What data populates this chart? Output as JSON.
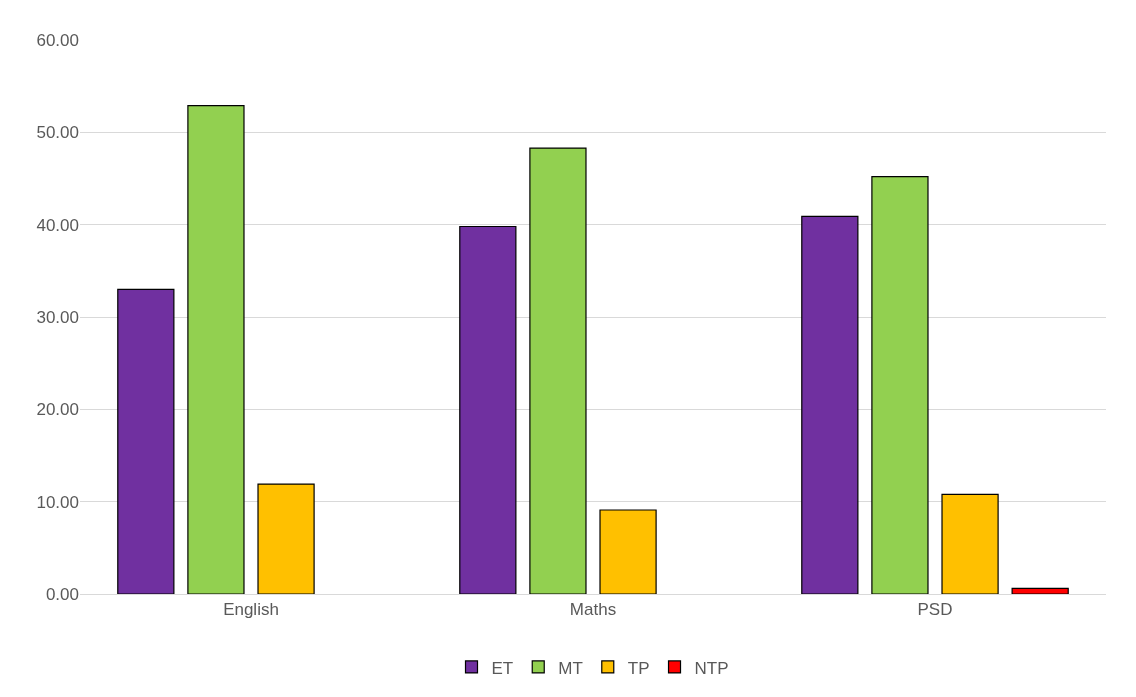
{
  "chart_data": {
    "type": "bar",
    "categories": [
      "English",
      "Maths",
      "PSD"
    ],
    "series": [
      {
        "name": "ET",
        "color": "#7030a0",
        "values": [
          33.0,
          39.8,
          40.9
        ]
      },
      {
        "name": "MT",
        "color": "#92d050",
        "values": [
          52.9,
          48.3,
          45.2
        ]
      },
      {
        "name": "TP",
        "color": "#ffc000",
        "values": [
          11.9,
          9.1,
          10.8
        ]
      },
      {
        "name": "NTP",
        "color": "#ff0000",
        "values": [
          null,
          null,
          0.6
        ]
      }
    ],
    "ylim": [
      0,
      60
    ],
    "yticks": [
      {
        "value": 0,
        "label": "0.00"
      },
      {
        "value": 10,
        "label": "10.00"
      },
      {
        "value": 20,
        "label": "20.00"
      },
      {
        "value": 30,
        "label": "30.00"
      },
      {
        "value": 40,
        "label": "40.00"
      },
      {
        "value": 50,
        "label": "50.00"
      },
      {
        "value": 60,
        "label": "60.00"
      }
    ],
    "grid": "y",
    "legend": "bottom"
  }
}
